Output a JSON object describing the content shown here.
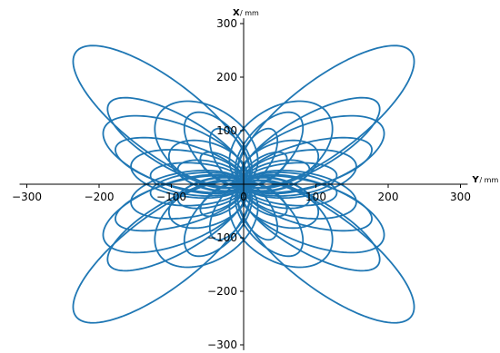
{
  "chart_data": {
    "type": "line",
    "title": "",
    "xlabel": "Y",
    "xlabel_unit": "/ mm",
    "ylabel": "X",
    "ylabel_unit": "/ mm",
    "xlim": [
      -310,
      310
    ],
    "ylim": [
      -310,
      310
    ],
    "xticks": [
      -300,
      -200,
      -100,
      0,
      100,
      200,
      300
    ],
    "yticks": [
      -300,
      -200,
      -100,
      100,
      200,
      300
    ],
    "xtick_labels": [
      "−300",
      "−200",
      "−100",
      "0",
      "100",
      "200",
      "300"
    ],
    "ytick_labels": [
      "−300",
      "−200",
      "−100",
      "100",
      "200",
      "300"
    ],
    "grid": false,
    "legend": "none",
    "line_color": "#1f77b4",
    "spines": "centered-at-origin",
    "series": [
      {
        "shape": "rotated-ellipse-loop",
        "description_of_values": "each loop: semi_major, semi_minor, angle_deg, with one copy in each quadrant",
        "loops": [
          {
            "a": 170,
            "b": 60,
            "angle": 48
          },
          {
            "a": 120,
            "b": 45,
            "angle": 40
          },
          {
            "a": 110,
            "b": 55,
            "angle": 30
          },
          {
            "a": 95,
            "b": 40,
            "angle": 22
          },
          {
            "a": 90,
            "b": 60,
            "angle": 55
          },
          {
            "a": 80,
            "b": 42,
            "angle": 14
          },
          {
            "a": 75,
            "b": 35,
            "angle": 62
          },
          {
            "a": 65,
            "b": 30,
            "angle": 8
          },
          {
            "a": 60,
            "b": 40,
            "angle": 35
          },
          {
            "a": 55,
            "b": 22,
            "angle": 70
          },
          {
            "a": 48,
            "b": 25,
            "angle": 20
          },
          {
            "a": 40,
            "b": 20,
            "angle": 45
          }
        ]
      }
    ]
  }
}
